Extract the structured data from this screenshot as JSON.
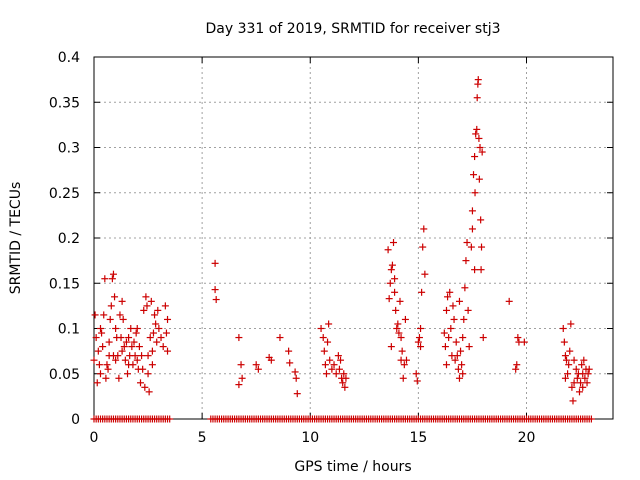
{
  "chart_data": {
    "type": "scatter",
    "title": "Day 331 of 2019, SRMTID for receiver stj3",
    "xlabel": "GPS time / hours",
    "ylabel": "SRMTID / TECUs",
    "xlim": [
      0,
      24
    ],
    "ylim": [
      0,
      0.4
    ],
    "xticks": [
      0,
      5,
      10,
      15,
      20
    ],
    "xtick_labels": [
      "0",
      "5",
      "10",
      "15",
      "20"
    ],
    "yticks": [
      0,
      0.05,
      0.1,
      0.15,
      0.2,
      0.25,
      0.3,
      0.35,
      0.4
    ],
    "ytick_labels": [
      "0",
      "0.05",
      "0.1",
      "0.15",
      "0.2",
      "0.25",
      "0.3",
      "0.35",
      "0.4"
    ],
    "grid": true,
    "marker": "+",
    "series": [
      {
        "name": "SRMTID",
        "color": "#cc0000",
        "points": [
          [
            0.0,
            0.065
          ],
          [
            0.05,
            0.115
          ],
          [
            0.1,
            0.09
          ],
          [
            0.15,
            0.04
          ],
          [
            0.2,
            0.075
          ],
          [
            0.25,
            0.06
          ],
          [
            0.3,
            0.05
          ],
          [
            0.35,
            0.095
          ],
          [
            0.4,
            0.08
          ],
          [
            0.45,
            0.115
          ],
          [
            0.5,
            0.155
          ],
          [
            0.55,
            0.045
          ],
          [
            0.6,
            0.06
          ],
          [
            0.65,
            0.055
          ],
          [
            0.7,
            0.085
          ],
          [
            0.75,
            0.11
          ],
          [
            0.8,
            0.125
          ],
          [
            0.85,
            0.155
          ],
          [
            0.9,
            0.16
          ],
          [
            0.95,
            0.135
          ],
          [
            1.0,
            0.1
          ],
          [
            1.05,
            0.09
          ],
          [
            1.1,
            0.07
          ],
          [
            1.15,
            0.045
          ],
          [
            1.2,
            0.115
          ],
          [
            1.25,
            0.09
          ],
          [
            1.3,
            0.075
          ],
          [
            1.35,
            0.11
          ],
          [
            1.4,
            0.08
          ],
          [
            1.45,
            0.065
          ],
          [
            1.5,
            0.085
          ],
          [
            1.55,
            0.05
          ],
          [
            1.6,
            0.09
          ],
          [
            1.65,
            0.07
          ],
          [
            1.7,
            0.1
          ],
          [
            1.75,
            0.08
          ],
          [
            1.8,
            0.06
          ],
          [
            1.85,
            0.085
          ],
          [
            1.9,
            0.07
          ],
          [
            1.95,
            0.095
          ],
          [
            2.0,
            0.065
          ],
          [
            2.05,
            0.055
          ],
          [
            2.1,
            0.08
          ],
          [
            2.15,
            0.04
          ],
          [
            2.2,
            0.07
          ],
          [
            2.25,
            0.055
          ],
          [
            2.3,
            0.12
          ],
          [
            2.35,
            0.035
          ],
          [
            2.4,
            0.135
          ],
          [
            2.45,
            0.125
          ],
          [
            2.5,
            0.05
          ],
          [
            2.55,
            0.03
          ],
          [
            2.6,
            0.09
          ],
          [
            2.65,
            0.13
          ],
          [
            2.7,
            0.075
          ],
          [
            2.75,
            0.095
          ],
          [
            2.8,
            0.115
          ],
          [
            2.85,
            0.105
          ],
          [
            2.9,
            0.085
          ],
          [
            2.95,
            0.12
          ],
          [
            3.0,
            0.1
          ],
          [
            3.1,
            0.09
          ],
          [
            3.2,
            0.08
          ],
          [
            3.3,
            0.125
          ],
          [
            3.35,
            0.095
          ],
          [
            3.4,
            0.075
          ],
          [
            0.3,
            0.1
          ],
          [
            0.7,
            0.07
          ],
          [
            1.0,
            0.065
          ],
          [
            1.6,
            0.06
          ],
          [
            2.0,
            0.1
          ],
          [
            2.5,
            0.07
          ],
          [
            5.6,
            0.172
          ],
          [
            5.6,
            0.143
          ],
          [
            5.65,
            0.132
          ],
          [
            6.7,
            0.09
          ],
          [
            6.8,
            0.06
          ],
          [
            6.85,
            0.045
          ],
          [
            6.7,
            0.038
          ],
          [
            7.5,
            0.06
          ],
          [
            7.6,
            0.055
          ],
          [
            8.1,
            0.068
          ],
          [
            8.2,
            0.065
          ],
          [
            8.6,
            0.09
          ],
          [
            9.0,
            0.075
          ],
          [
            9.05,
            0.062
          ],
          [
            9.3,
            0.052
          ],
          [
            9.35,
            0.045
          ],
          [
            9.4,
            0.028
          ],
          [
            10.5,
            0.1
          ],
          [
            10.6,
            0.09
          ],
          [
            10.65,
            0.075
          ],
          [
            10.7,
            0.06
          ],
          [
            10.75,
            0.05
          ],
          [
            10.8,
            0.085
          ],
          [
            10.85,
            0.105
          ],
          [
            10.9,
            0.065
          ],
          [
            11.0,
            0.055
          ],
          [
            11.1,
            0.06
          ],
          [
            11.2,
            0.05
          ],
          [
            11.3,
            0.07
          ],
          [
            11.35,
            0.055
          ],
          [
            11.4,
            0.065
          ],
          [
            11.45,
            0.045
          ],
          [
            11.5,
            0.04
          ],
          [
            11.55,
            0.05
          ],
          [
            11.6,
            0.035
          ],
          [
            11.65,
            0.045
          ],
          [
            13.6,
            0.187
          ],
          [
            13.65,
            0.133
          ],
          [
            13.7,
            0.15
          ],
          [
            13.75,
            0.165
          ],
          [
            13.8,
            0.17
          ],
          [
            13.85,
            0.195
          ],
          [
            13.9,
            0.14
          ],
          [
            13.95,
            0.12
          ],
          [
            14.0,
            0.1
          ],
          [
            14.05,
            0.105
          ],
          [
            14.1,
            0.095
          ],
          [
            14.15,
            0.13
          ],
          [
            14.2,
            0.09
          ],
          [
            14.25,
            0.075
          ],
          [
            14.3,
            0.045
          ],
          [
            14.35,
            0.06
          ],
          [
            14.4,
            0.11
          ],
          [
            14.45,
            0.065
          ],
          [
            13.75,
            0.08
          ],
          [
            13.9,
            0.155
          ],
          [
            14.9,
            0.05
          ],
          [
            14.95,
            0.042
          ],
          [
            15.0,
            0.085
          ],
          [
            15.05,
            0.09
          ],
          [
            15.1,
            0.08
          ],
          [
            15.15,
            0.14
          ],
          [
            15.2,
            0.19
          ],
          [
            15.25,
            0.21
          ],
          [
            15.3,
            0.16
          ],
          [
            16.2,
            0.095
          ],
          [
            16.25,
            0.08
          ],
          [
            16.3,
            0.12
          ],
          [
            16.35,
            0.135
          ],
          [
            16.4,
            0.09
          ],
          [
            16.45,
            0.14
          ],
          [
            16.5,
            0.1
          ],
          [
            16.55,
            0.07
          ],
          [
            16.6,
            0.125
          ],
          [
            16.65,
            0.11
          ],
          [
            16.7,
            0.065
          ],
          [
            16.75,
            0.085
          ],
          [
            16.8,
            0.07
          ],
          [
            16.85,
            0.055
          ],
          [
            16.9,
            0.045
          ],
          [
            16.95,
            0.075
          ],
          [
            17.0,
            0.06
          ],
          [
            17.05,
            0.09
          ],
          [
            17.1,
            0.11
          ],
          [
            17.15,
            0.145
          ],
          [
            17.2,
            0.175
          ],
          [
            17.25,
            0.195
          ],
          [
            17.3,
            0.12
          ],
          [
            17.35,
            0.08
          ],
          [
            17.45,
            0.19
          ],
          [
            17.5,
            0.23
          ],
          [
            17.55,
            0.27
          ],
          [
            17.6,
            0.29
          ],
          [
            17.62,
            0.25
          ],
          [
            17.65,
            0.315
          ],
          [
            17.7,
            0.32
          ],
          [
            17.72,
            0.355
          ],
          [
            17.75,
            0.37
          ],
          [
            17.77,
            0.375
          ],
          [
            17.8,
            0.31
          ],
          [
            17.82,
            0.265
          ],
          [
            17.85,
            0.3
          ],
          [
            17.88,
            0.22
          ],
          [
            17.9,
            0.165
          ],
          [
            17.92,
            0.19
          ],
          [
            17.95,
            0.295
          ],
          [
            17.5,
            0.21
          ],
          [
            17.6,
            0.165
          ],
          [
            18.0,
            0.09
          ],
          [
            19.2,
            0.13
          ],
          [
            19.5,
            0.055
          ],
          [
            19.55,
            0.06
          ],
          [
            19.6,
            0.09
          ],
          [
            19.65,
            0.085
          ],
          [
            19.9,
            0.085
          ],
          [
            21.7,
            0.1
          ],
          [
            21.75,
            0.085
          ],
          [
            21.8,
            0.07
          ],
          [
            21.85,
            0.065
          ],
          [
            21.9,
            0.05
          ],
          [
            21.95,
            0.06
          ],
          [
            22.0,
            0.075
          ],
          [
            22.05,
            0.105
          ],
          [
            22.1,
            0.035
          ],
          [
            22.15,
            0.02
          ],
          [
            22.2,
            0.04
          ],
          [
            22.3,
            0.055
          ],
          [
            22.35,
            0.045
          ],
          [
            22.4,
            0.05
          ],
          [
            22.45,
            0.03
          ],
          [
            22.5,
            0.04
          ],
          [
            22.55,
            0.06
          ],
          [
            22.6,
            0.05
          ],
          [
            22.65,
            0.065
          ],
          [
            22.7,
            0.045
          ],
          [
            22.75,
            0.055
          ],
          [
            22.8,
            0.04
          ],
          [
            22.85,
            0.05
          ],
          [
            21.8,
            0.045
          ],
          [
            22.2,
            0.065
          ],
          [
            22.6,
            0.035
          ],
          [
            22.9,
            0.055
          ],
          [
            16.3,
            0.06
          ],
          [
            16.9,
            0.13
          ],
          [
            17.05,
            0.05
          ],
          [
            0.9,
            0.07
          ],
          [
            1.3,
            0.13
          ],
          [
            2.7,
            0.06
          ],
          [
            3.4,
            0.11
          ],
          [
            14.2,
            0.065
          ],
          [
            15.1,
            0.1
          ]
        ]
      }
    ],
    "baseline_zero_ranges": [
      [
        0.0,
        3.5
      ],
      [
        5.4,
        23.0
      ]
    ]
  }
}
